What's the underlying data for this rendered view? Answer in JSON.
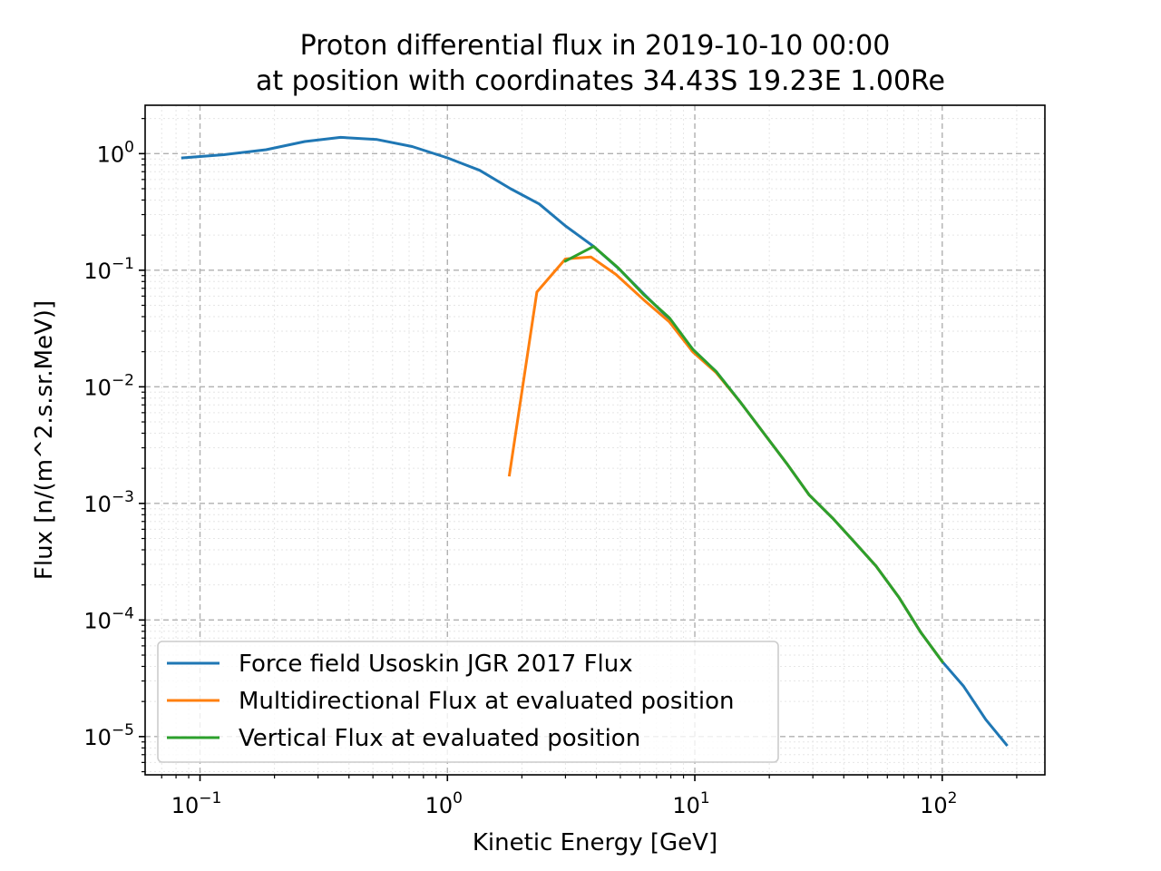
{
  "chart_data": {
    "type": "line",
    "title_line1": "Proton differential flux in 2019-10-10 00:00",
    "title_line2": "at position with coordinates 34.43S 19.23E 1.00Re",
    "xlabel": "Kinetic Energy [GeV]",
    "ylabel": "Flux [n/(m^2.s.sr.MeV)]",
    "xscale": "log",
    "yscale": "log",
    "xlim": [
      0.06,
      260
    ],
    "ylim": [
      4.7e-06,
      2.6
    ],
    "x_ticks": [
      {
        "value": 0.1,
        "base": "10",
        "exp": "−1"
      },
      {
        "value": 1,
        "base": "10",
        "exp": "0"
      },
      {
        "value": 10,
        "base": "10",
        "exp": "1"
      },
      {
        "value": 100,
        "base": "10",
        "exp": "2"
      }
    ],
    "y_ticks": [
      {
        "value": 1,
        "base": "10",
        "exp": "0"
      },
      {
        "value": 0.1,
        "base": "10",
        "exp": "−1"
      },
      {
        "value": 0.01,
        "base": "10",
        "exp": "−2"
      },
      {
        "value": 0.001,
        "base": "10",
        "exp": "−3"
      },
      {
        "value": 0.0001,
        "base": "10",
        "exp": "−4"
      },
      {
        "value": 1e-05,
        "base": "10",
        "exp": "−5"
      }
    ],
    "grid": true,
    "legend_position": "lower-left",
    "series": [
      {
        "name": "Force field Usoskin JGR 2017 Flux",
        "color": "#1f77b4",
        "x": [
          0.085,
          0.125,
          0.185,
          0.265,
          0.37,
          0.52,
          0.72,
          1.0,
          1.35,
          1.8,
          2.35,
          3.0,
          3.9,
          5.0,
          6.3,
          7.9,
          9.8,
          12.2,
          15.2,
          19,
          23.5,
          29,
          36,
          44,
          54,
          67,
          82,
          100,
          122,
          150,
          182
        ],
        "y": [
          0.92,
          0.98,
          1.08,
          1.27,
          1.38,
          1.32,
          1.15,
          0.92,
          0.72,
          0.5,
          0.37,
          0.24,
          0.16,
          0.1,
          0.061,
          0.038,
          0.021,
          0.0135,
          0.0075,
          0.004,
          0.0022,
          0.00118,
          0.00075,
          0.00047,
          0.00029,
          0.000155,
          7.8e-05,
          4.4e-05,
          2.7e-05,
          1.4e-05,
          8.5e-06
        ]
      },
      {
        "name": "Multidirectional Flux at evaluated position",
        "color": "#ff7f0e",
        "x": [
          1.78,
          2.3,
          3.0,
          3.8,
          4.8,
          6.2,
          7.9,
          9.8,
          12.2,
          15.2,
          19,
          23.5,
          29,
          36,
          44,
          54,
          67,
          82,
          100
        ],
        "y": [
          0.00175,
          0.065,
          0.125,
          0.13,
          0.092,
          0.056,
          0.036,
          0.02,
          0.0132,
          0.0075,
          0.004,
          0.0022,
          0.00118,
          0.00075,
          0.00047,
          0.00029,
          0.000155,
          7.8e-05,
          4.4e-05
        ]
      },
      {
        "name": "Vertical Flux at evaluated position",
        "color": "#2ca02c",
        "x": [
          3.0,
          3.9,
          4.9,
          6.2,
          7.9,
          9.8,
          12.2,
          15.2,
          19,
          23.5,
          29,
          36,
          44,
          54,
          67,
          82,
          100
        ],
        "y": [
          0.12,
          0.16,
          0.105,
          0.062,
          0.039,
          0.021,
          0.0135,
          0.0075,
          0.004,
          0.0022,
          0.00118,
          0.00075,
          0.00047,
          0.00029,
          0.000155,
          7.8e-05,
          4.4e-05
        ]
      }
    ]
  }
}
